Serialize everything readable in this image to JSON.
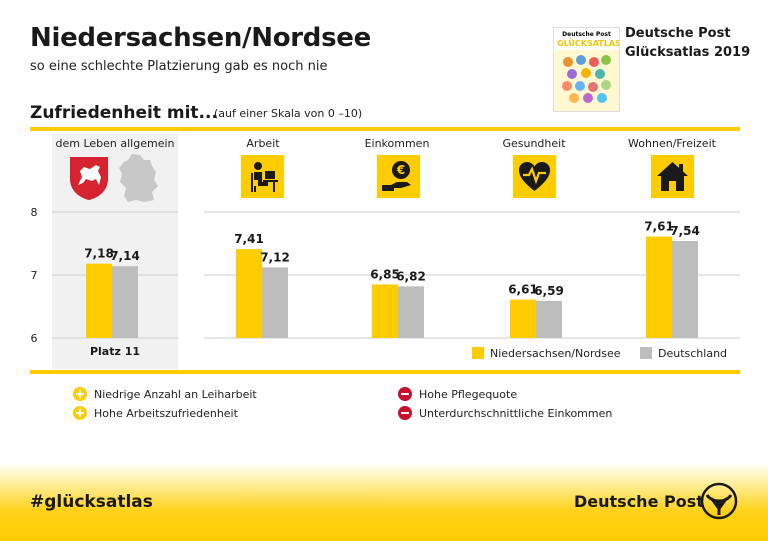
{
  "header": {
    "title": "Niedersachsen/Nordsee",
    "subtitle": "so eine schlechte Platzierung gab es noch nie",
    "brand_line1": "Deutsche Post",
    "brand_line2": "Glücksatlas 2019",
    "cover_title": "Deutsche Post",
    "cover_word": "GLÜCKSATLAS",
    "cover_year": "2019"
  },
  "section": {
    "title": "Zufriedenheit mit...",
    "note": "(auf einer Skala von 0 –10)"
  },
  "categories_labels": [
    "dem Leben allgemein",
    "Arbeit",
    "Einkommen",
    "Gesundheit",
    "Wohnen/Freizeit"
  ],
  "icons": [
    "lower-saxony-coat-of-arms-icon",
    "germany-map-icon",
    "worker-at-desk-icon",
    "euro-hand-icon",
    "heart-pulse-icon",
    "house-icon"
  ],
  "rank_label": "Platz 11",
  "chart_data": {
    "type": "bar",
    "categories": [
      "dem Leben allgemein",
      "Arbeit",
      "Einkommen",
      "Gesundheit",
      "Wohnen/Freizeit"
    ],
    "series": [
      {
        "name": "Niedersachsen/Nordsee",
        "values": [
          7.18,
          7.41,
          6.85,
          6.61,
          7.61
        ],
        "labels": [
          "7,18",
          "7,41",
          "6,85",
          "6,61",
          "7,61"
        ],
        "color": "#ffcc00"
      },
      {
        "name": "Deutschland",
        "values": [
          7.14,
          7.12,
          6.82,
          6.59,
          7.54
        ],
        "labels": [
          "7,14",
          "7,12",
          "6,82",
          "6,59",
          "7,54"
        ],
        "color": "#bdbdbd"
      }
    ],
    "yticks": [
      "8",
      "7",
      "6"
    ],
    "ylim": [
      6,
      8
    ],
    "grid": true,
    "legend": "bottom-right"
  },
  "legend": {
    "item1": "Niedersachsen/Nordsee",
    "item2": "Deutschland"
  },
  "notes": {
    "positive": [
      "Niedrige Anzahl an Leiharbeit",
      "Hohe Arbeitszufriedenheit"
    ],
    "negative": [
      "Hohe Pflegequote",
      "Unterdurchschnittliche Einkommen"
    ]
  },
  "footer": {
    "hashtag": "#glücksatlas",
    "brand": "Deutsche Post"
  },
  "colors": {
    "accent": "#ffcc00",
    "gray_bar": "#bdbdbd",
    "negative": "#c8102e"
  }
}
